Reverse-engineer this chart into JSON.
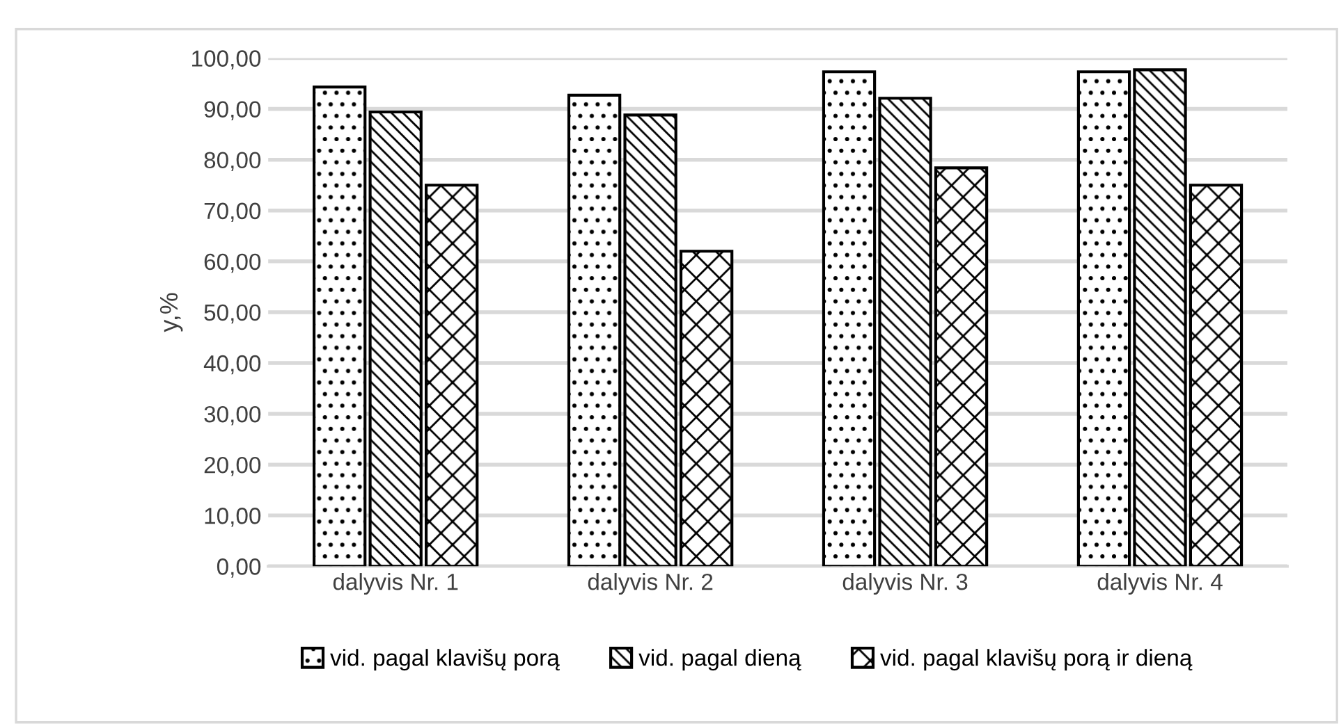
{
  "chart_data": {
    "type": "bar",
    "ylabel": "y,%",
    "categories": [
      "dalyvis Nr. 1",
      "dalyvis Nr. 2",
      "dalyvis Nr. 3",
      "dalyvis Nr. 4"
    ],
    "series": [
      {
        "name": "vid. pagal klavišų porą",
        "color": "#000000",
        "values": [
          94.3,
          92.7,
          97.3,
          97.3
        ]
      },
      {
        "name": "vid. pagal dieną",
        "color": "#000000",
        "values": [
          89.4,
          88.8,
          92.1,
          97.7
        ]
      },
      {
        "name": "vid. pagal klavišų porą ir dieną",
        "color": "#000000",
        "values": [
          75.0,
          62.0,
          78.4,
          75.0
        ]
      }
    ],
    "ylim": [
      0,
      100
    ],
    "yticks": [
      {
        "value": 0,
        "label": "0,00"
      },
      {
        "value": 10,
        "label": "10,00"
      },
      {
        "value": 20,
        "label": "20,00"
      },
      {
        "value": 30,
        "label": "30,00"
      },
      {
        "value": 40,
        "label": "40,00"
      },
      {
        "value": 50,
        "label": "50,00"
      },
      {
        "value": 60,
        "label": "60,00"
      },
      {
        "value": 70,
        "label": "70,00"
      },
      {
        "value": 80,
        "label": "80,00"
      },
      {
        "value": 90,
        "label": "90,00"
      },
      {
        "value": 100,
        "label": "100,00"
      }
    ],
    "grid": "y",
    "legend": "bottom"
  }
}
